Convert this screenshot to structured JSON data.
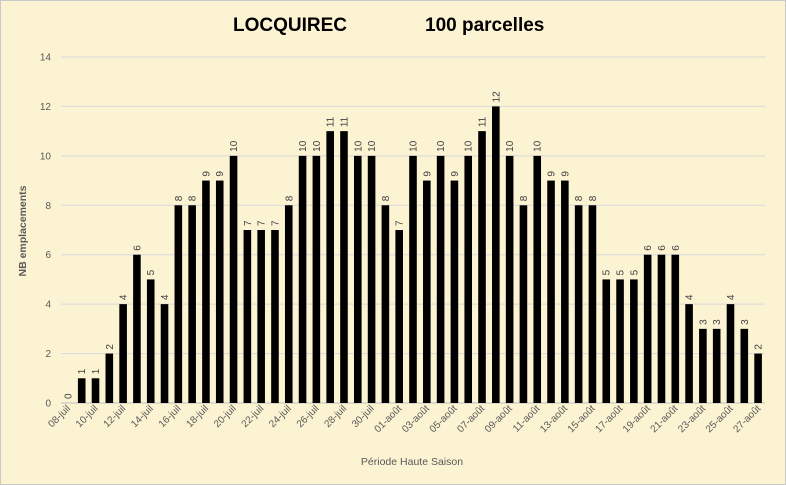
{
  "chart_data": {
    "type": "bar",
    "title": "LOCQUIREC",
    "subtitle": "100 parcelles",
    "xlabel": "Période Haute Saison",
    "ylabel": "NB emplacements",
    "ylim": [
      0,
      14
    ],
    "yticks": [
      0,
      2,
      4,
      6,
      8,
      10,
      12,
      14
    ],
    "grid": true,
    "bar_color": "#000000",
    "categories": [
      "08-juil",
      "09-juil",
      "10-juil",
      "11-juil",
      "12-juil",
      "13-juil",
      "14-juil",
      "15-juil",
      "16-juil",
      "17-juil",
      "18-juil",
      "19-juil",
      "20-juil",
      "21-juil",
      "22-juil",
      "23-juil",
      "24-juil",
      "25-juil",
      "26-juil",
      "27-juil",
      "28-juil",
      "29-juil",
      "30-juil",
      "31-juil",
      "01-août",
      "02-août",
      "03-août",
      "04-août",
      "05-août",
      "06-août",
      "07-août",
      "08-août",
      "09-août",
      "10-août",
      "11-août",
      "12-août",
      "13-août",
      "14-août",
      "15-août",
      "16-août",
      "17-août",
      "18-août",
      "19-août",
      "20-août",
      "21-août",
      "22-août",
      "23-août",
      "24-août",
      "25-août",
      "26-août",
      "27-août"
    ],
    "values": [
      0,
      1,
      1,
      2,
      4,
      6,
      5,
      4,
      8,
      8,
      9,
      9,
      10,
      7,
      7,
      7,
      8,
      10,
      10,
      11,
      11,
      10,
      10,
      8,
      7,
      10,
      9,
      10,
      9,
      10,
      11,
      12,
      10,
      8,
      10,
      9,
      9,
      8,
      8,
      5,
      5,
      5,
      6,
      6,
      6,
      4,
      3,
      3,
      4,
      3,
      2
    ]
  }
}
